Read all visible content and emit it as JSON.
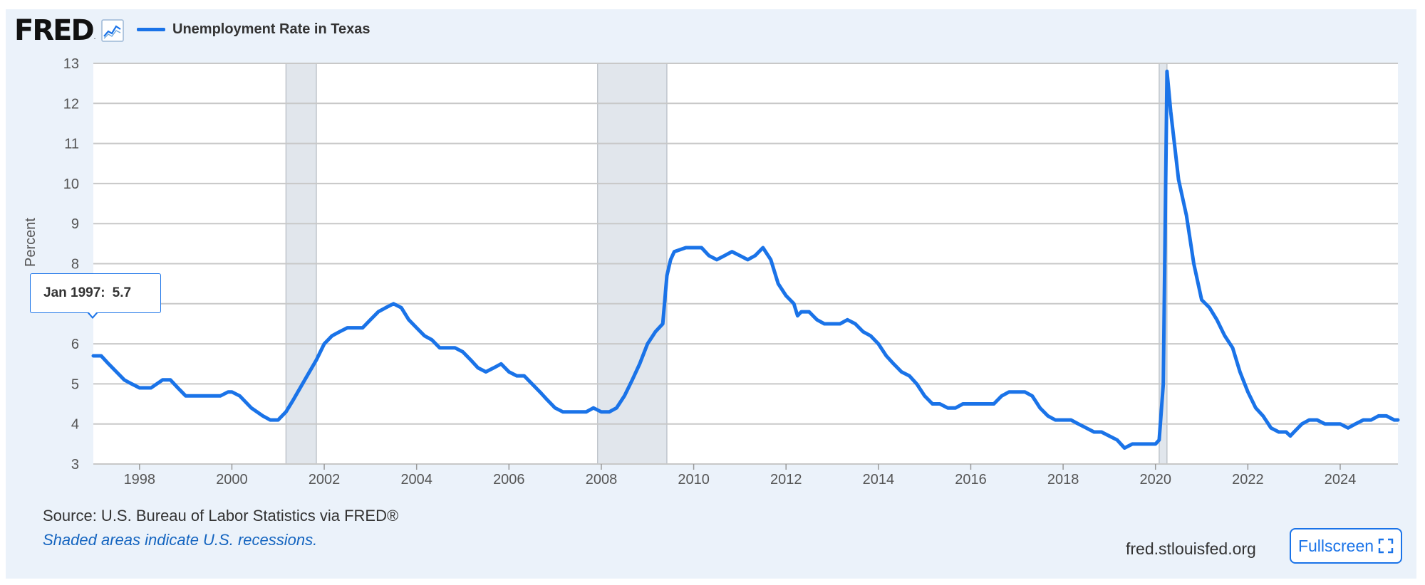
{
  "header": {
    "logo_text": "FRED",
    "logo_reg": ".",
    "legend_label": "Unemployment Rate in Texas",
    "line_color": "#1a73e8",
    "icons": [
      "graph-icon",
      "fullscreen-icon"
    ]
  },
  "footer": {
    "source": "Source: U.S. Bureau of Labor Statistics via FRED®",
    "shading_note": "Shaded areas indicate U.S. recessions.",
    "site": "fred.stlouisfed.org",
    "fullscreen_label": "Fullscreen"
  },
  "tooltip": {
    "date": "Jan 1997:",
    "value": "5.7"
  },
  "chart_data": {
    "type": "line",
    "title": "",
    "xlabel": "",
    "ylabel": "Percent",
    "xlim": [
      1997.0,
      2025.25
    ],
    "ylim": [
      3,
      13
    ],
    "x_ticks": [
      "1998",
      "2000",
      "2002",
      "2004",
      "2006",
      "2008",
      "2010",
      "2012",
      "2014",
      "2016",
      "2018",
      "2020",
      "2022",
      "2024"
    ],
    "y_ticks": [
      "3",
      "4",
      "5",
      "6",
      "7",
      "8",
      "9",
      "10",
      "11",
      "12",
      "13"
    ],
    "grid": true,
    "recessions": [
      [
        2001.17,
        2001.83
      ],
      [
        2007.92,
        2009.42
      ],
      [
        2020.08,
        2020.25
      ]
    ],
    "series": [
      {
        "name": "Unemployment Rate in Texas",
        "points": [
          [
            1997.0,
            5.7
          ],
          [
            1997.17,
            5.7
          ],
          [
            1997.33,
            5.5
          ],
          [
            1997.5,
            5.3
          ],
          [
            1997.67,
            5.1
          ],
          [
            1997.83,
            5.0
          ],
          [
            1998.0,
            4.9
          ],
          [
            1998.25,
            4.9
          ],
          [
            1998.5,
            5.1
          ],
          [
            1998.67,
            5.1
          ],
          [
            1998.83,
            4.9
          ],
          [
            1999.0,
            4.7
          ],
          [
            1999.5,
            4.7
          ],
          [
            1999.75,
            4.7
          ],
          [
            1999.92,
            4.8
          ],
          [
            2000.0,
            4.8
          ],
          [
            2000.17,
            4.7
          ],
          [
            2000.42,
            4.4
          ],
          [
            2000.67,
            4.2
          ],
          [
            2000.83,
            4.1
          ],
          [
            2001.0,
            4.1
          ],
          [
            2001.17,
            4.3
          ],
          [
            2001.33,
            4.6
          ],
          [
            2001.58,
            5.1
          ],
          [
            2001.83,
            5.6
          ],
          [
            2002.0,
            6.0
          ],
          [
            2002.17,
            6.2
          ],
          [
            2002.33,
            6.3
          ],
          [
            2002.5,
            6.4
          ],
          [
            2002.67,
            6.4
          ],
          [
            2002.83,
            6.4
          ],
          [
            2003.0,
            6.6
          ],
          [
            2003.17,
            6.8
          ],
          [
            2003.33,
            6.9
          ],
          [
            2003.5,
            7.0
          ],
          [
            2003.67,
            6.9
          ],
          [
            2003.83,
            6.6
          ],
          [
            2004.0,
            6.4
          ],
          [
            2004.17,
            6.2
          ],
          [
            2004.33,
            6.1
          ],
          [
            2004.5,
            5.9
          ],
          [
            2004.67,
            5.9
          ],
          [
            2004.83,
            5.9
          ],
          [
            2005.0,
            5.8
          ],
          [
            2005.17,
            5.6
          ],
          [
            2005.33,
            5.4
          ],
          [
            2005.5,
            5.3
          ],
          [
            2005.67,
            5.4
          ],
          [
            2005.83,
            5.5
          ],
          [
            2006.0,
            5.3
          ],
          [
            2006.17,
            5.2
          ],
          [
            2006.33,
            5.2
          ],
          [
            2006.5,
            5.0
          ],
          [
            2006.67,
            4.8
          ],
          [
            2006.83,
            4.6
          ],
          [
            2007.0,
            4.4
          ],
          [
            2007.17,
            4.3
          ],
          [
            2007.33,
            4.3
          ],
          [
            2007.5,
            4.3
          ],
          [
            2007.67,
            4.3
          ],
          [
            2007.83,
            4.4
          ],
          [
            2008.0,
            4.3
          ],
          [
            2008.17,
            4.3
          ],
          [
            2008.33,
            4.4
          ],
          [
            2008.5,
            4.7
          ],
          [
            2008.67,
            5.1
          ],
          [
            2008.83,
            5.5
          ],
          [
            2009.0,
            6.0
          ],
          [
            2009.17,
            6.3
          ],
          [
            2009.33,
            6.5
          ],
          [
            2009.42,
            7.7
          ],
          [
            2009.5,
            8.1
          ],
          [
            2009.58,
            8.3
          ],
          [
            2009.83,
            8.4
          ],
          [
            2010.0,
            8.4
          ],
          [
            2010.17,
            8.4
          ],
          [
            2010.33,
            8.2
          ],
          [
            2010.5,
            8.1
          ],
          [
            2010.67,
            8.2
          ],
          [
            2010.83,
            8.3
          ],
          [
            2011.0,
            8.2
          ],
          [
            2011.17,
            8.1
          ],
          [
            2011.33,
            8.2
          ],
          [
            2011.5,
            8.4
          ],
          [
            2011.67,
            8.1
          ],
          [
            2011.83,
            7.5
          ],
          [
            2012.0,
            7.2
          ],
          [
            2012.17,
            7.0
          ],
          [
            2012.25,
            6.7
          ],
          [
            2012.33,
            6.8
          ],
          [
            2012.5,
            6.8
          ],
          [
            2012.67,
            6.6
          ],
          [
            2012.83,
            6.5
          ],
          [
            2013.0,
            6.5
          ],
          [
            2013.17,
            6.5
          ],
          [
            2013.33,
            6.6
          ],
          [
            2013.5,
            6.5
          ],
          [
            2013.67,
            6.3
          ],
          [
            2013.83,
            6.2
          ],
          [
            2014.0,
            6.0
          ],
          [
            2014.17,
            5.7
          ],
          [
            2014.33,
            5.5
          ],
          [
            2014.5,
            5.3
          ],
          [
            2014.67,
            5.2
          ],
          [
            2014.83,
            5.0
          ],
          [
            2015.0,
            4.7
          ],
          [
            2015.17,
            4.5
          ],
          [
            2015.33,
            4.5
          ],
          [
            2015.5,
            4.4
          ],
          [
            2015.67,
            4.4
          ],
          [
            2015.83,
            4.5
          ],
          [
            2016.0,
            4.5
          ],
          [
            2016.25,
            4.5
          ],
          [
            2016.5,
            4.5
          ],
          [
            2016.67,
            4.7
          ],
          [
            2016.83,
            4.8
          ],
          [
            2017.0,
            4.8
          ],
          [
            2017.17,
            4.8
          ],
          [
            2017.33,
            4.7
          ],
          [
            2017.5,
            4.4
          ],
          [
            2017.67,
            4.2
          ],
          [
            2017.83,
            4.1
          ],
          [
            2018.0,
            4.1
          ],
          [
            2018.17,
            4.1
          ],
          [
            2018.33,
            4.0
          ],
          [
            2018.5,
            3.9
          ],
          [
            2018.67,
            3.8
          ],
          [
            2018.83,
            3.8
          ],
          [
            2019.0,
            3.7
          ],
          [
            2019.17,
            3.6
          ],
          [
            2019.33,
            3.4
          ],
          [
            2019.5,
            3.5
          ],
          [
            2019.67,
            3.5
          ],
          [
            2019.83,
            3.5
          ],
          [
            2020.0,
            3.5
          ],
          [
            2020.08,
            3.6
          ],
          [
            2020.17,
            5.0
          ],
          [
            2020.25,
            12.8
          ],
          [
            2020.33,
            11.8
          ],
          [
            2020.5,
            10.1
          ],
          [
            2020.67,
            9.2
          ],
          [
            2020.83,
            8.0
          ],
          [
            2021.0,
            7.1
          ],
          [
            2021.17,
            6.9
          ],
          [
            2021.33,
            6.6
          ],
          [
            2021.5,
            6.2
          ],
          [
            2021.67,
            5.9
          ],
          [
            2021.83,
            5.3
          ],
          [
            2022.0,
            4.8
          ],
          [
            2022.17,
            4.4
          ],
          [
            2022.33,
            4.2
          ],
          [
            2022.5,
            3.9
          ],
          [
            2022.67,
            3.8
          ],
          [
            2022.83,
            3.8
          ],
          [
            2022.92,
            3.7
          ],
          [
            2023.0,
            3.8
          ],
          [
            2023.17,
            4.0
          ],
          [
            2023.33,
            4.1
          ],
          [
            2023.5,
            4.1
          ],
          [
            2023.67,
            4.0
          ],
          [
            2023.83,
            4.0
          ],
          [
            2024.0,
            4.0
          ],
          [
            2024.17,
            3.9
          ],
          [
            2024.33,
            4.0
          ],
          [
            2024.5,
            4.1
          ],
          [
            2024.67,
            4.1
          ],
          [
            2024.83,
            4.2
          ],
          [
            2025.0,
            4.2
          ],
          [
            2025.17,
            4.1
          ],
          [
            2025.25,
            4.1
          ]
        ]
      }
    ]
  }
}
